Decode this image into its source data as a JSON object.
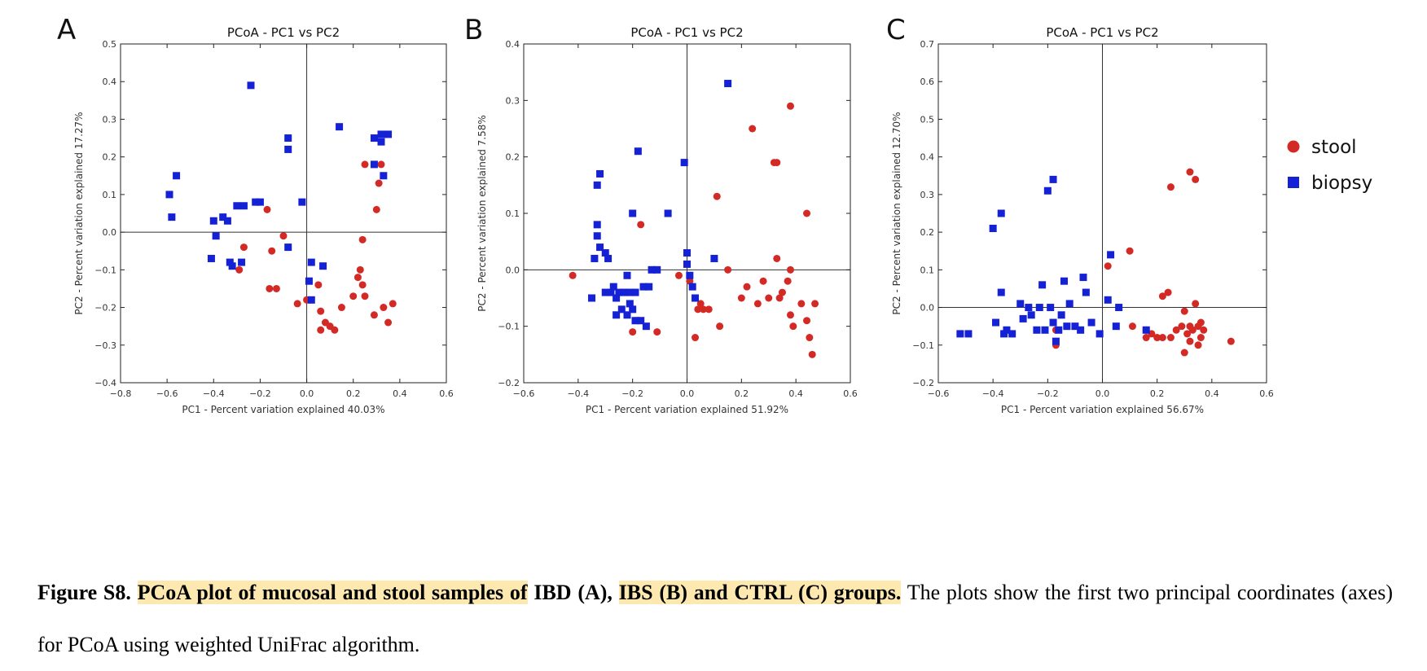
{
  "chart_data": [
    {
      "type": "scatter",
      "panel_letter": "A",
      "title": "PCoA - PC1 vs PC2",
      "xlabel": "PC1 - Percent variation explained 40.03%",
      "ylabel": "PC2 - Percent variation explained 17.27%",
      "xlim": [
        -0.8,
        0.6
      ],
      "ylim": [
        -0.4,
        0.5
      ],
      "xticks": [
        -0.8,
        -0.6,
        -0.4,
        -0.2,
        0.0,
        0.2,
        0.4,
        0.6
      ],
      "yticks": [
        -0.4,
        -0.3,
        -0.2,
        -0.1,
        0.0,
        0.1,
        0.2,
        0.3,
        0.4,
        0.5
      ],
      "xtick_labels": [
        "−0.8",
        "−0.6",
        "−0.4",
        "−0.2",
        "0.0",
        "0.2",
        "0.4",
        "0.6"
      ],
      "ytick_labels": [
        "−0.4",
        "−0.3",
        "−0.2",
        "−0.1",
        "0.0",
        "0.1",
        "0.2",
        "0.3",
        "0.4",
        "0.5"
      ],
      "series": [
        {
          "name": "stool",
          "marker": "circle",
          "color": "#d42a26",
          "points": [
            [
              -0.27,
              -0.04
            ],
            [
              -0.29,
              -0.1
            ],
            [
              -0.17,
              0.06
            ],
            [
              -0.16,
              -0.15
            ],
            [
              -0.13,
              -0.15
            ],
            [
              -0.15,
              -0.05
            ],
            [
              -0.1,
              -0.01
            ],
            [
              -0.04,
              -0.19
            ],
            [
              0.0,
              -0.18
            ],
            [
              0.05,
              -0.14
            ],
            [
              0.06,
              -0.21
            ],
            [
              0.08,
              -0.24
            ],
            [
              0.1,
              -0.25
            ],
            [
              0.12,
              -0.26
            ],
            [
              0.06,
              -0.26
            ],
            [
              0.15,
              -0.2
            ],
            [
              0.2,
              -0.17
            ],
            [
              0.22,
              -0.12
            ],
            [
              0.23,
              -0.1
            ],
            [
              0.24,
              -0.14
            ],
            [
              0.25,
              -0.17
            ],
            [
              0.24,
              -0.02
            ],
            [
              0.25,
              0.18
            ],
            [
              0.3,
              0.06
            ],
            [
              0.31,
              0.13
            ],
            [
              0.32,
              0.18
            ],
            [
              0.33,
              -0.2
            ],
            [
              0.35,
              -0.24
            ],
            [
              0.37,
              -0.19
            ],
            [
              0.29,
              -0.22
            ]
          ]
        },
        {
          "name": "biopsy",
          "marker": "square",
          "color": "#1421d4",
          "points": [
            [
              -0.59,
              0.1
            ],
            [
              -0.56,
              0.15
            ],
            [
              -0.58,
              0.04
            ],
            [
              -0.4,
              0.03
            ],
            [
              -0.36,
              0.04
            ],
            [
              -0.34,
              0.03
            ],
            [
              -0.39,
              -0.01
            ],
            [
              -0.41,
              -0.07
            ],
            [
              -0.33,
              -0.08
            ],
            [
              -0.32,
              -0.09
            ],
            [
              -0.28,
              -0.08
            ],
            [
              -0.3,
              0.07
            ],
            [
              -0.27,
              0.07
            ],
            [
              -0.22,
              0.08
            ],
            [
              -0.2,
              0.08
            ],
            [
              -0.24,
              0.39
            ],
            [
              -0.08,
              0.25
            ],
            [
              -0.08,
              0.22
            ],
            [
              -0.08,
              -0.04
            ],
            [
              -0.02,
              0.08
            ],
            [
              0.02,
              -0.08
            ],
            [
              0.01,
              -0.13
            ],
            [
              0.02,
              -0.18
            ],
            [
              0.07,
              -0.09
            ],
            [
              0.14,
              0.28
            ],
            [
              0.29,
              0.25
            ],
            [
              0.32,
              0.26
            ],
            [
              0.35,
              0.26
            ],
            [
              0.32,
              0.24
            ],
            [
              0.29,
              0.18
            ],
            [
              0.33,
              0.15
            ]
          ]
        }
      ]
    },
    {
      "type": "scatter",
      "panel_letter": "B",
      "title": "PCoA - PC1 vs PC2",
      "xlabel": "PC1 - Percent variation explained 51.92%",
      "ylabel": "PC2 - Percent variation explained 7.58%",
      "xlim": [
        -0.6,
        0.6
      ],
      "ylim": [
        -0.2,
        0.4
      ],
      "xticks": [
        -0.6,
        -0.4,
        -0.2,
        0.0,
        0.2,
        0.4,
        0.6
      ],
      "yticks": [
        -0.2,
        -0.1,
        0.0,
        0.1,
        0.2,
        0.3,
        0.4
      ],
      "xtick_labels": [
        "−0.6",
        "−0.4",
        "−0.2",
        "0.0",
        "0.2",
        "0.4",
        "0.6"
      ],
      "ytick_labels": [
        "−0.2",
        "−0.1",
        "0.0",
        "0.1",
        "0.2",
        "0.3",
        "0.4"
      ],
      "series": [
        {
          "name": "stool",
          "marker": "circle",
          "color": "#d42a26",
          "points": [
            [
              -0.42,
              -0.01
            ],
            [
              -0.2,
              -0.11
            ],
            [
              -0.17,
              0.08
            ],
            [
              -0.11,
              -0.11
            ],
            [
              -0.03,
              -0.01
            ],
            [
              0.01,
              -0.02
            ],
            [
              0.03,
              -0.12
            ],
            [
              0.05,
              -0.06
            ],
            [
              0.06,
              -0.07
            ],
            [
              0.08,
              -0.07
            ],
            [
              0.04,
              -0.07
            ],
            [
              0.11,
              0.13
            ],
            [
              0.12,
              -0.1
            ],
            [
              0.15,
              0.0
            ],
            [
              0.2,
              -0.05
            ],
            [
              0.22,
              -0.03
            ],
            [
              0.24,
              0.25
            ],
            [
              0.26,
              -0.06
            ],
            [
              0.28,
              -0.02
            ],
            [
              0.3,
              -0.05
            ],
            [
              0.32,
              0.19
            ],
            [
              0.33,
              0.19
            ],
            [
              0.33,
              0.02
            ],
            [
              0.34,
              -0.05
            ],
            [
              0.35,
              -0.04
            ],
            [
              0.37,
              -0.02
            ],
            [
              0.38,
              0.29
            ],
            [
              0.38,
              0.0
            ],
            [
              0.38,
              -0.08
            ],
            [
              0.39,
              -0.1
            ],
            [
              0.42,
              -0.06
            ],
            [
              0.44,
              0.1
            ],
            [
              0.44,
              -0.09
            ],
            [
              0.45,
              -0.12
            ],
            [
              0.47,
              -0.06
            ],
            [
              0.46,
              -0.15
            ]
          ]
        },
        {
          "name": "biopsy",
          "marker": "square",
          "color": "#1421d4",
          "points": [
            [
              -0.35,
              -0.05
            ],
            [
              -0.34,
              0.02
            ],
            [
              -0.33,
              0.08
            ],
            [
              -0.33,
              0.06
            ],
            [
              -0.33,
              0.15
            ],
            [
              -0.32,
              0.17
            ],
            [
              -0.32,
              0.04
            ],
            [
              -0.3,
              0.03
            ],
            [
              -0.29,
              0.02
            ],
            [
              -0.3,
              -0.04
            ],
            [
              -0.28,
              -0.04
            ],
            [
              -0.27,
              -0.03
            ],
            [
              -0.26,
              -0.05
            ],
            [
              -0.25,
              -0.04
            ],
            [
              -0.26,
              -0.08
            ],
            [
              -0.24,
              -0.07
            ],
            [
              -0.23,
              -0.04
            ],
            [
              -0.22,
              -0.08
            ],
            [
              -0.22,
              -0.01
            ],
            [
              -0.21,
              -0.04
            ],
            [
              -0.21,
              -0.06
            ],
            [
              -0.2,
              -0.07
            ],
            [
              -0.19,
              -0.04
            ],
            [
              -0.2,
              0.1
            ],
            [
              -0.19,
              -0.09
            ],
            [
              -0.18,
              0.21
            ],
            [
              -0.17,
              -0.09
            ],
            [
              -0.16,
              -0.03
            ],
            [
              -0.14,
              -0.03
            ],
            [
              -0.15,
              -0.1
            ],
            [
              -0.13,
              0.0
            ],
            [
              -0.11,
              0.0
            ],
            [
              -0.07,
              0.1
            ],
            [
              -0.01,
              0.19
            ],
            [
              0.0,
              0.03
            ],
            [
              0.0,
              0.01
            ],
            [
              0.01,
              -0.01
            ],
            [
              0.02,
              -0.03
            ],
            [
              0.03,
              -0.05
            ],
            [
              0.1,
              0.02
            ],
            [
              0.15,
              0.33
            ]
          ]
        }
      ]
    },
    {
      "type": "scatter",
      "panel_letter": "C",
      "title": "PCoA - PC1 vs PC2",
      "xlabel": "PC1 - Percent variation explained 56.67%",
      "ylabel": "PC2 - Percent variation explained 12.70%",
      "xlim": [
        -0.6,
        0.6
      ],
      "ylim": [
        -0.2,
        0.7
      ],
      "xticks": [
        -0.6,
        -0.4,
        -0.2,
        0.0,
        0.2,
        0.4,
        0.6
      ],
      "yticks": [
        -0.2,
        -0.1,
        0.0,
        0.1,
        0.2,
        0.3,
        0.4,
        0.5,
        0.6,
        0.7
      ],
      "xtick_labels": [
        "−0.6",
        "−0.4",
        "−0.2",
        "0.0",
        "0.2",
        "0.4",
        "0.6"
      ],
      "ytick_labels": [
        "−0.2",
        "−0.1",
        "0.0",
        "0.1",
        "0.2",
        "0.3",
        "0.4",
        "0.5",
        "0.6",
        "0.7"
      ],
      "series": [
        {
          "name": "stool",
          "marker": "circle",
          "color": "#d42a26",
          "points": [
            [
              -0.33,
              -0.07
            ],
            [
              -0.17,
              -0.1
            ],
            [
              -0.17,
              -0.06
            ],
            [
              0.02,
              0.11
            ],
            [
              0.1,
              0.15
            ],
            [
              0.11,
              -0.05
            ],
            [
              0.16,
              -0.06
            ],
            [
              0.16,
              -0.08
            ],
            [
              0.18,
              -0.07
            ],
            [
              0.2,
              -0.08
            ],
            [
              0.22,
              -0.08
            ],
            [
              0.22,
              0.03
            ],
            [
              0.24,
              0.04
            ],
            [
              0.25,
              -0.08
            ],
            [
              0.25,
              0.32
            ],
            [
              0.27,
              -0.06
            ],
            [
              0.29,
              -0.05
            ],
            [
              0.3,
              -0.12
            ],
            [
              0.3,
              -0.01
            ],
            [
              0.31,
              -0.07
            ],
            [
              0.32,
              -0.05
            ],
            [
              0.32,
              -0.09
            ],
            [
              0.33,
              -0.06
            ],
            [
              0.34,
              0.01
            ],
            [
              0.34,
              0.34
            ],
            [
              0.35,
              -0.1
            ],
            [
              0.35,
              -0.05
            ],
            [
              0.36,
              -0.08
            ],
            [
              0.36,
              -0.04
            ],
            [
              0.37,
              -0.06
            ],
            [
              0.32,
              0.36
            ],
            [
              0.47,
              -0.09
            ]
          ]
        },
        {
          "name": "biopsy",
          "marker": "square",
          "color": "#1421d4",
          "points": [
            [
              -0.52,
              -0.07
            ],
            [
              -0.49,
              -0.07
            ],
            [
              -0.4,
              0.21
            ],
            [
              -0.39,
              -0.04
            ],
            [
              -0.37,
              0.25
            ],
            [
              -0.37,
              0.04
            ],
            [
              -0.36,
              -0.07
            ],
            [
              -0.35,
              -0.06
            ],
            [
              -0.33,
              -0.07
            ],
            [
              -0.3,
              0.01
            ],
            [
              -0.29,
              -0.03
            ],
            [
              -0.27,
              0.0
            ],
            [
              -0.26,
              -0.02
            ],
            [
              -0.24,
              -0.06
            ],
            [
              -0.23,
              0.0
            ],
            [
              -0.22,
              0.06
            ],
            [
              -0.21,
              -0.06
            ],
            [
              -0.2,
              0.31
            ],
            [
              -0.19,
              0.0
            ],
            [
              -0.18,
              -0.04
            ],
            [
              -0.18,
              0.34
            ],
            [
              -0.17,
              -0.09
            ],
            [
              -0.16,
              -0.06
            ],
            [
              -0.15,
              -0.02
            ],
            [
              -0.14,
              0.07
            ],
            [
              -0.13,
              -0.05
            ],
            [
              -0.12,
              0.01
            ],
            [
              -0.1,
              -0.05
            ],
            [
              -0.08,
              -0.06
            ],
            [
              -0.07,
              0.08
            ],
            [
              -0.06,
              0.04
            ],
            [
              -0.04,
              -0.04
            ],
            [
              0.02,
              0.02
            ],
            [
              0.03,
              0.14
            ],
            [
              0.05,
              -0.05
            ],
            [
              0.06,
              0.0
            ],
            [
              -0.01,
              -0.07
            ],
            [
              0.16,
              -0.06
            ]
          ]
        }
      ]
    }
  ],
  "legend": {
    "items": [
      {
        "label": "stool",
        "marker": "circle",
        "color": "#d42a26"
      },
      {
        "label": "biopsy",
        "marker": "square",
        "color": "#1421d4"
      }
    ]
  },
  "caption": {
    "label": "Figure S8.",
    "title_part1": "PCoA plot of mucosal and stool samples of",
    "title_part2": "IBD (A),",
    "title_part3": "IBS (B) and CTRL (C) groups.",
    "body": "The plots show the first two principal coordinates (axes) for PCoA using weighted UniFrac algorithm."
  }
}
